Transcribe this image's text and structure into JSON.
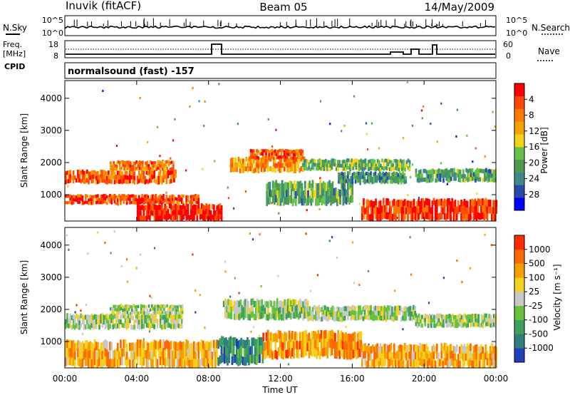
{
  "header": {
    "station": "Inuvik  (fitACF)",
    "beam": "Beam 05",
    "date": "14/May/2009"
  },
  "top_panel": {
    "left_label": "N.Sky",
    "left_ticks": [
      "10^5",
      "10^0"
    ],
    "right_ticks": [
      "10^5",
      "10^0"
    ],
    "right_label": "N.Search"
  },
  "freq_panel": {
    "left_label_1": "Freq.",
    "left_label_2": "[MHz]",
    "left_ticks": [
      "18",
      "8"
    ],
    "right_ticks": [
      "60",
      "0"
    ],
    "right_label": "Nave",
    "cpid_label": "CPID"
  },
  "program": "normalsound (fast) -157",
  "chart_data": [
    {
      "type": "heatmap",
      "title": "",
      "xlabel": "Time UT",
      "ylabel": "Slant Range [km]",
      "x_ticks": [
        "00:00",
        "04:00",
        "08:00",
        "12:00",
        "16:00",
        "20:00",
        "00:00"
      ],
      "y_ticks": [
        "1000",
        "2000",
        "3000",
        "4000"
      ],
      "ylim": [
        180,
        4550
      ],
      "colorbar": {
        "label": "Power [dB]",
        "ticks": [
          "4",
          "8",
          "12",
          "16",
          "20",
          "24",
          "28"
        ],
        "colors": [
          "#0000ff",
          "#2b4ba8",
          "#3d8a8a",
          "#4f9b4f",
          "#66c24a",
          "#f2d21a",
          "#f5a300",
          "#ff7a00",
          "#ff4a00",
          "#ff0000"
        ]
      },
      "bands": [
        {
          "start": 0.0,
          "end": 7.4,
          "range": [
            700,
            1000
          ],
          "level": 0.85
        },
        {
          "start": 0.0,
          "end": 6.2,
          "range": [
            1350,
            1750
          ],
          "level": 0.8
        },
        {
          "start": 2.5,
          "end": 6.0,
          "range": [
            1750,
            2050
          ],
          "level": 0.75
        },
        {
          "start": 4.0,
          "end": 8.7,
          "range": [
            200,
            700
          ],
          "level": 0.95
        },
        {
          "start": 9.2,
          "end": 13.3,
          "range": [
            1700,
            2150
          ],
          "level": 0.7
        },
        {
          "start": 10.3,
          "end": 13.2,
          "range": [
            2100,
            2400
          ],
          "level": 0.8
        },
        {
          "start": 11.2,
          "end": 16.0,
          "range": [
            700,
            1400
          ],
          "level": 0.35
        },
        {
          "start": 13.2,
          "end": 19.2,
          "range": [
            1750,
            2100
          ],
          "level": 0.4
        },
        {
          "start": 15.2,
          "end": 19.0,
          "range": [
            1350,
            1700
          ],
          "level": 0.3
        },
        {
          "start": 16.5,
          "end": 24.0,
          "range": [
            200,
            850
          ],
          "level": 0.9
        },
        {
          "start": 19.5,
          "end": 24.0,
          "range": [
            1400,
            1800
          ],
          "level": 0.35
        }
      ]
    },
    {
      "type": "heatmap",
      "title": "",
      "xlabel": "Time UT",
      "ylabel": "Slant Range [km]",
      "x_ticks": [
        "00:00",
        "04:00",
        "08:00",
        "12:00",
        "16:00",
        "20:00",
        "00:00"
      ],
      "y_ticks": [
        "1000",
        "2000",
        "3000",
        "4000"
      ],
      "ylim": [
        180,
        4550
      ],
      "colorbar": {
        "label": "Velocity [m s⁻¹]",
        "ticks": [
          "1000",
          "500",
          "100",
          "25",
          "-25",
          "-100",
          "-500",
          "-1000"
        ],
        "colors": [
          "#2040c0",
          "#2f7f7f",
          "#3f9f5f",
          "#66c23a",
          "#c8c8c8",
          "#f5d020",
          "#f5a000",
          "#ff6a00",
          "#ff2a00"
        ]
      },
      "bands": [
        {
          "start": 0.0,
          "end": 6.5,
          "range": [
            1400,
            1850
          ],
          "level": 0.45
        },
        {
          "start": 2.5,
          "end": 6.5,
          "range": [
            1850,
            2150
          ],
          "level": 0.45
        },
        {
          "start": 0.0,
          "end": 8.5,
          "range": [
            200,
            1000
          ],
          "level": 0.7
        },
        {
          "start": 8.8,
          "end": 13.5,
          "range": [
            1700,
            2300
          ],
          "level": 0.45
        },
        {
          "start": 8.5,
          "end": 11.0,
          "range": [
            300,
            1100
          ],
          "level": 0.25
        },
        {
          "start": 11.0,
          "end": 16.5,
          "range": [
            500,
            1300
          ],
          "level": 0.75
        },
        {
          "start": 13.5,
          "end": 19.5,
          "range": [
            1650,
            2100
          ],
          "level": 0.45
        },
        {
          "start": 16.5,
          "end": 24.0,
          "range": [
            200,
            900
          ],
          "level": 0.7
        },
        {
          "start": 19.5,
          "end": 24.0,
          "range": [
            1450,
            1850
          ],
          "level": 0.45
        }
      ]
    }
  ],
  "colors": {
    "axis": "#000000",
    "background": "#ffffff"
  }
}
